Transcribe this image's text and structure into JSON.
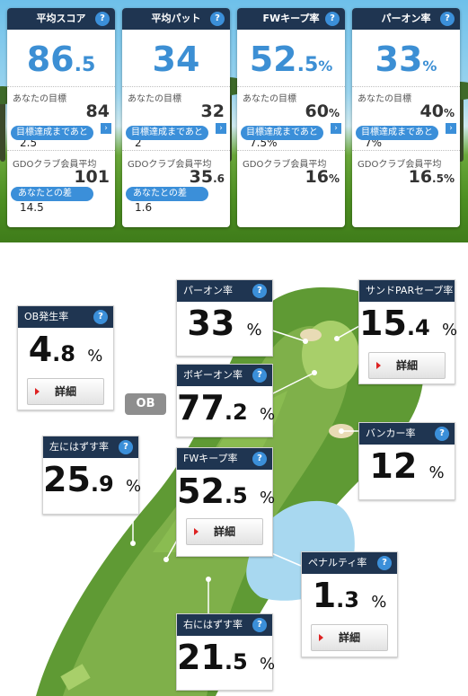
{
  "summary": [
    {
      "title": "平均スコア",
      "main_int": "86",
      "main_dec": ".5",
      "main_unit": "",
      "goal_label": "あなたの目標",
      "goal_value": "84",
      "goal_unit": "",
      "remain_label": "目標達成まであと",
      "remain_value": "2.5",
      "avg_label": "GDOクラブ会員平均",
      "avg_int": "101",
      "avg_dec": "",
      "avg_unit": "",
      "diff_label": "あなたとの差",
      "diff_value": "14.5"
    },
    {
      "title": "平均パット",
      "main_int": "34",
      "main_dec": "",
      "main_unit": "",
      "goal_label": "あなたの目標",
      "goal_value": "32",
      "goal_unit": "",
      "remain_label": "目標達成まであと",
      "remain_value": "2",
      "avg_label": "GDOクラブ会員平均",
      "avg_int": "35",
      "avg_dec": ".6",
      "avg_unit": "",
      "diff_label": "あなたとの差",
      "diff_value": "1.6"
    },
    {
      "title": "FWキープ率",
      "main_int": "52",
      "main_dec": ".5",
      "main_unit": "%",
      "goal_label": "あなたの目標",
      "goal_value": "60",
      "goal_unit": "%",
      "remain_label": "目標達成まであと",
      "remain_value": "7.5%",
      "avg_label": "GDOクラブ会員平均",
      "avg_int": "16",
      "avg_dec": "",
      "avg_unit": "%",
      "diff_label": "",
      "diff_value": ""
    },
    {
      "title": "パーオン率",
      "main_int": "33",
      "main_dec": "",
      "main_unit": "%",
      "goal_label": "あなたの目標",
      "goal_value": "40",
      "goal_unit": "%",
      "remain_label": "目標達成まであと",
      "remain_value": "7%",
      "avg_label": "GDOクラブ会員平均",
      "avg_int": "16",
      "avg_dec": ".5",
      "avg_unit": "%",
      "diff_label": "",
      "diff_value": ""
    }
  ],
  "help_glyph": "?",
  "arrow_glyph": "›",
  "course": {
    "ob_tag": "OB",
    "detail_label": "詳細",
    "stats": {
      "ob": {
        "title": "OB発生率",
        "int": "4",
        "dec": ".8",
        "unit": "%"
      },
      "paron": {
        "title": "パーオン率",
        "int": "33",
        "dec": "",
        "unit": "%"
      },
      "sand": {
        "title": "サンドPARセーブ率",
        "int": "15",
        "dec": ".4",
        "unit": "%"
      },
      "bogey": {
        "title": "ボギーオン率",
        "int": "77",
        "dec": ".2",
        "unit": "%"
      },
      "left": {
        "title": "左にはずす率",
        "int": "25",
        "dec": ".9",
        "unit": "%"
      },
      "fw": {
        "title": "FWキープ率",
        "int": "52",
        "dec": ".5",
        "unit": "%"
      },
      "bunker": {
        "title": "バンカー率",
        "int": "12",
        "dec": "",
        "unit": "%"
      },
      "penalty": {
        "title": "ペナルティ率",
        "int": "1",
        "dec": ".3",
        "unit": "%"
      },
      "right": {
        "title": "右にはずす率",
        "int": "21",
        "dec": ".5",
        "unit": "%"
      }
    }
  },
  "colors": {
    "header_navy": "#1f3551",
    "accent_blue": "#3b8fd9",
    "big_number_blue": "#3c8fd4",
    "fairway_green": "#7fb04a",
    "rough_green": "#5f9a34",
    "water_blue": "#a8d8f0",
    "bunker_sand": "#e8dbb5"
  }
}
